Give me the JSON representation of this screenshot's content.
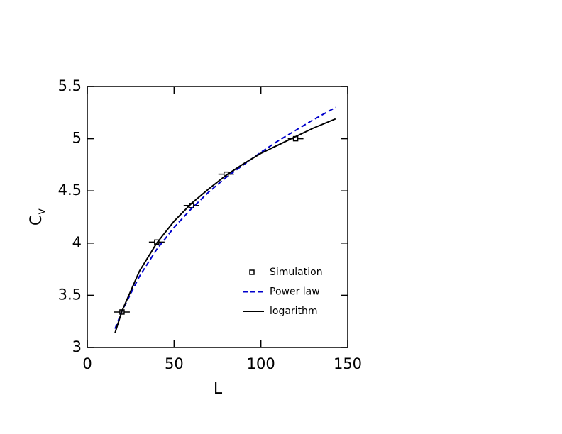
{
  "chart_data": {
    "type": "line",
    "x_label": "L",
    "y_label": {
      "text": "C",
      "subscript": "v"
    },
    "xlim": [
      0,
      150
    ],
    "xticks": [
      0,
      50,
      100,
      150
    ],
    "ylim": [
      3,
      5.5
    ],
    "yticks": [
      3,
      3.5,
      4,
      4.5,
      5,
      5.5
    ],
    "legend": "lower right",
    "series": [
      {
        "name": "Simulation",
        "type": "scatter",
        "color": "#000000",
        "x": [
          20,
          40,
          60,
          80,
          120
        ],
        "values": [
          3.34,
          4.01,
          4.36,
          4.66,
          5.0
        ]
      },
      {
        "name": "Power law",
        "type": "line",
        "dash": true,
        "color": "#0000cc",
        "x": [
          16,
          20,
          30,
          40,
          50,
          60,
          70,
          80,
          90,
          100,
          110,
          120,
          130,
          143
        ],
        "values": [
          3.18,
          3.35,
          3.68,
          3.94,
          4.15,
          4.33,
          4.49,
          4.63,
          4.75,
          4.87,
          4.98,
          5.08,
          5.18,
          5.3
        ]
      },
      {
        "name": "logarithm",
        "type": "line",
        "dash": false,
        "color": "#000000",
        "x": [
          16,
          20,
          30,
          40,
          50,
          60,
          70,
          80,
          90,
          100,
          110,
          120,
          130,
          143
        ],
        "values": [
          3.14,
          3.35,
          3.73,
          4.0,
          4.21,
          4.38,
          4.52,
          4.65,
          4.76,
          4.86,
          4.94,
          5.02,
          5.1,
          5.19
        ]
      }
    ]
  }
}
